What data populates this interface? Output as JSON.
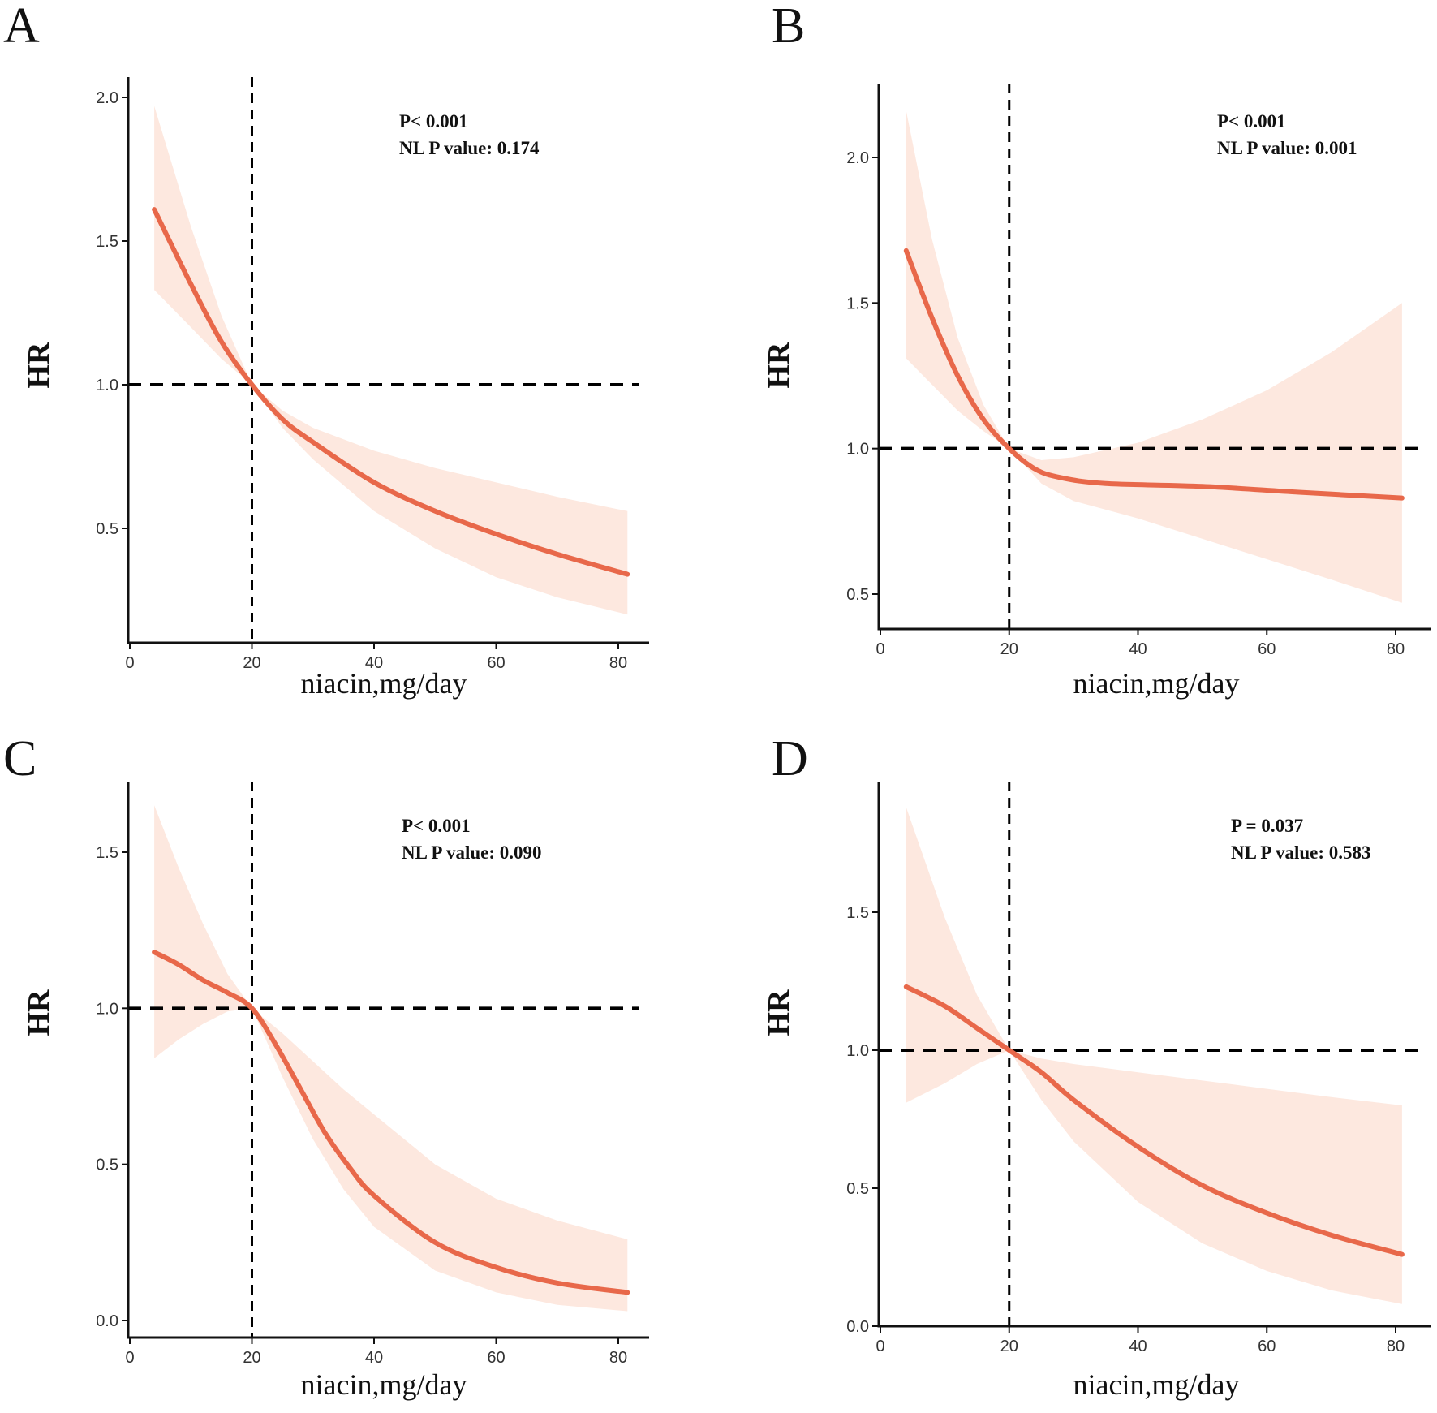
{
  "chart_data": [
    {
      "panel": "A",
      "type": "line",
      "xlabel": "niacin,mg/day",
      "ylabel": "HR",
      "xlim": [
        0,
        85
      ],
      "ylim": [
        0.12,
        2.05
      ],
      "xticks": [
        0,
        20,
        40,
        60,
        80
      ],
      "yticks": [
        0.5,
        1.0,
        1.5,
        2.0
      ],
      "ytick_labels": [
        "0.5",
        "1.0",
        "1.5",
        "2.0"
      ],
      "ref_x": 20,
      "ref_y": 1.0,
      "annotations": [
        "P< 0.001",
        "NL P value: 0.174"
      ],
      "series": [
        {
          "name": "HR",
          "x": [
            4,
            10,
            15,
            20,
            25,
            30,
            40,
            50,
            60,
            70,
            81.5
          ],
          "values": [
            1.61,
            1.35,
            1.15,
            1.0,
            0.88,
            0.8,
            0.66,
            0.56,
            0.48,
            0.41,
            0.34
          ]
        },
        {
          "name": "95% CI lower",
          "x": [
            4,
            10,
            15,
            20,
            25,
            30,
            40,
            50,
            60,
            70,
            81.5
          ],
          "values": [
            1.33,
            1.2,
            1.09,
            1.0,
            0.85,
            0.74,
            0.56,
            0.43,
            0.33,
            0.26,
            0.2
          ]
        },
        {
          "name": "95% CI upper",
          "x": [
            4,
            10,
            15,
            20,
            25,
            30,
            40,
            50,
            60,
            70,
            81.5
          ],
          "values": [
            1.97,
            1.55,
            1.24,
            1.0,
            0.91,
            0.85,
            0.77,
            0.71,
            0.66,
            0.61,
            0.56
          ]
        }
      ]
    },
    {
      "panel": "B",
      "type": "line",
      "xlabel": "niacin,mg/day",
      "ylabel": "HR",
      "xlim": [
        0,
        85
      ],
      "ylim": [
        0.38,
        2.3
      ],
      "xticks": [
        0,
        20,
        40,
        60,
        80
      ],
      "yticks": [
        0.5,
        1.0,
        1.5,
        2.0
      ],
      "ytick_labels": [
        "0.5",
        "1.0",
        "1.5",
        "2.0"
      ],
      "ref_x": 20,
      "ref_y": 1.0,
      "annotations": [
        "P< 0.001",
        "NL P value: 0.001"
      ],
      "series": [
        {
          "name": "HR",
          "x": [
            4,
            8,
            12,
            16,
            20,
            24,
            28,
            35,
            50,
            65,
            81
          ],
          "values": [
            1.68,
            1.45,
            1.25,
            1.1,
            1.0,
            0.93,
            0.9,
            0.88,
            0.87,
            0.85,
            0.83
          ]
        },
        {
          "name": "95% CI lower",
          "x": [
            4,
            8,
            12,
            16,
            20,
            25,
            30,
            40,
            50,
            60,
            70,
            81
          ],
          "values": [
            1.31,
            1.22,
            1.13,
            1.06,
            1.0,
            0.88,
            0.82,
            0.76,
            0.69,
            0.62,
            0.55,
            0.47
          ]
        },
        {
          "name": "95% CI upper",
          "x": [
            4,
            8,
            12,
            16,
            20,
            25,
            30,
            40,
            50,
            60,
            70,
            81
          ],
          "values": [
            2.16,
            1.72,
            1.38,
            1.15,
            1.0,
            0.96,
            0.97,
            1.02,
            1.1,
            1.2,
            1.33,
            1.5
          ]
        }
      ]
    },
    {
      "panel": "C",
      "type": "line",
      "xlabel": "niacin,mg/day",
      "ylabel": "HR",
      "xlim": [
        0,
        85
      ],
      "ylim": [
        -0.05,
        1.78
      ],
      "xticks": [
        0,
        20,
        40,
        60,
        80
      ],
      "yticks": [
        0.0,
        0.5,
        1.0,
        1.5
      ],
      "ytick_labels": [
        "0.0",
        "0.5",
        "1.0",
        "1.5"
      ],
      "ref_x": 20,
      "ref_y": 1.0,
      "annotations": [
        "P< 0.001",
        "NL P value: 0.090"
      ],
      "series": [
        {
          "name": "HR",
          "x": [
            4,
            8,
            12,
            16,
            20,
            24,
            28,
            32,
            36,
            40,
            50,
            60,
            70,
            81.5
          ],
          "values": [
            1.18,
            1.14,
            1.09,
            1.05,
            1.0,
            0.88,
            0.74,
            0.6,
            0.49,
            0.4,
            0.25,
            0.17,
            0.12,
            0.09
          ]
        },
        {
          "name": "95% CI lower",
          "x": [
            4,
            8,
            12,
            16,
            20,
            25,
            30,
            35,
            40,
            50,
            60,
            70,
            81.5
          ],
          "values": [
            0.84,
            0.9,
            0.95,
            0.99,
            1.0,
            0.78,
            0.58,
            0.42,
            0.3,
            0.16,
            0.09,
            0.05,
            0.03
          ]
        },
        {
          "name": "95% CI upper",
          "x": [
            4,
            8,
            12,
            16,
            20,
            25,
            30,
            35,
            40,
            50,
            60,
            70,
            81.5
          ],
          "values": [
            1.65,
            1.45,
            1.27,
            1.11,
            1.0,
            0.92,
            0.83,
            0.74,
            0.66,
            0.5,
            0.39,
            0.32,
            0.26
          ]
        }
      ]
    },
    {
      "panel": "D",
      "type": "line",
      "xlabel": "niacin,mg/day",
      "ylabel": "HR",
      "xlim": [
        0,
        85
      ],
      "ylim": [
        -0.02,
        1.98
      ],
      "xticks": [
        0,
        20,
        40,
        60,
        80
      ],
      "yticks": [
        0.0,
        0.5,
        1.0,
        1.5
      ],
      "ytick_labels": [
        "0.0",
        "0.5",
        "1.0",
        "1.5"
      ],
      "ref_x": 20,
      "ref_y": 1.0,
      "annotations": [
        "P = 0.037",
        "NL P value: 0.583"
      ],
      "series": [
        {
          "name": "HR",
          "x": [
            4,
            10,
            15,
            20,
            25,
            30,
            40,
            50,
            60,
            70,
            81
          ],
          "values": [
            1.23,
            1.16,
            1.08,
            1.0,
            0.92,
            0.82,
            0.65,
            0.51,
            0.41,
            0.33,
            0.26
          ]
        },
        {
          "name": "95% CI lower",
          "x": [
            4,
            10,
            15,
            20,
            25,
            30,
            40,
            50,
            60,
            70,
            81
          ],
          "values": [
            0.81,
            0.88,
            0.95,
            1.0,
            0.82,
            0.67,
            0.45,
            0.3,
            0.2,
            0.13,
            0.08
          ]
        },
        {
          "name": "95% CI upper",
          "x": [
            4,
            10,
            15,
            20,
            25,
            30,
            40,
            50,
            60,
            70,
            81
          ],
          "values": [
            1.88,
            1.48,
            1.2,
            1.0,
            0.97,
            0.95,
            0.92,
            0.89,
            0.86,
            0.83,
            0.8
          ]
        }
      ]
    }
  ],
  "colors": {
    "curve": "#e8684a",
    "ci_band": "#fde8df",
    "reference_lines": "#000000",
    "axis": "#111111"
  }
}
